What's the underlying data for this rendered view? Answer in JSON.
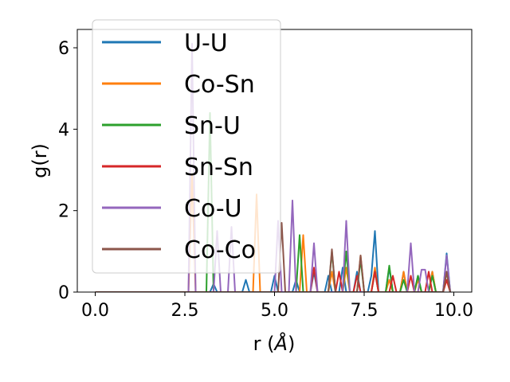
{
  "chart_data": {
    "type": "line",
    "xlabel": "r (",
    "xlabel_unit": "Å",
    "xlabel_close": ")",
    "ylabel": "g(r)",
    "xlim": [
      -0.5,
      10.5
    ],
    "ylim": [
      0,
      6.45
    ],
    "xticks": [
      0.0,
      2.5,
      5.0,
      7.5,
      10.0
    ],
    "xtick_labels": [
      "0.0",
      "2.5",
      "5.0",
      "7.5",
      "10.0"
    ],
    "yticks": [
      0,
      2,
      4,
      6
    ],
    "ytick_labels": [
      "0",
      "2",
      "4",
      "6"
    ],
    "grid": false,
    "legend_position": "upper-left",
    "series": [
      {
        "name": "U-U",
        "color": "#1f77b4",
        "x": [
          0,
          2.5,
          2.6,
          2.7,
          2.8,
          2.9,
          3.0,
          3.1,
          3.2,
          3.3,
          3.4,
          3.5,
          3.6,
          3.7,
          3.8,
          3.9,
          4.0,
          4.1,
          4.2,
          4.3,
          4.4,
          4.5,
          4.6,
          4.7,
          4.8,
          4.9,
          5.0,
          5.1,
          5.2,
          5.3,
          5.4,
          5.5,
          5.6,
          5.7,
          5.8,
          5.9,
          6.0,
          6.1,
          6.2,
          6.3,
          6.4,
          6.5,
          6.6,
          6.7,
          6.8,
          6.9,
          7.0,
          7.1,
          7.2,
          7.3,
          7.4,
          7.5,
          7.6,
          7.7,
          7.8,
          7.9,
          8.0,
          8.1,
          8.2,
          8.3,
          8.4,
          8.5,
          8.6,
          8.7,
          8.8,
          8.9,
          9.0,
          9.1,
          9.2,
          9.3,
          9.4,
          9.5,
          9.6,
          9.7,
          9.8,
          9.9
        ],
        "y": [
          0,
          0,
          0,
          0,
          0,
          0,
          0,
          0,
          0,
          0.2,
          0,
          0,
          0,
          0,
          0,
          0,
          0,
          0,
          0.3,
          0,
          0,
          0,
          0,
          0,
          0,
          0,
          0.4,
          0,
          0,
          0,
          0,
          0,
          0.3,
          0,
          0,
          0,
          0,
          0.5,
          0,
          0,
          0,
          0.4,
          0,
          0,
          0,
          0.6,
          0,
          0,
          0,
          0.5,
          0,
          0,
          0,
          0.4,
          1.5,
          0,
          0,
          0,
          0.6,
          0,
          0,
          0,
          0.5,
          0,
          0,
          0,
          0.4,
          0,
          0,
          0,
          0.5,
          0,
          0,
          0,
          0.95,
          0
        ]
      },
      {
        "name": "Co-Sn",
        "color": "#ff7f0e",
        "x": [
          0,
          2.5,
          2.6,
          2.7,
          2.8,
          2.9,
          3.0,
          3.1,
          3.2,
          3.3,
          3.4,
          3.5,
          3.6,
          3.7,
          3.8,
          3.9,
          4.0,
          4.1,
          4.2,
          4.3,
          4.4,
          4.5,
          4.6,
          4.7,
          4.8,
          4.9,
          5.0,
          5.1,
          5.2,
          5.3,
          5.4,
          5.5,
          5.6,
          5.7,
          5.8,
          5.9,
          6.0,
          6.1,
          6.2,
          6.3,
          6.4,
          6.5,
          6.6,
          6.7,
          6.8,
          6.9,
          7.0,
          7.1,
          7.2,
          7.3,
          7.4,
          7.5,
          7.6,
          7.7,
          7.8,
          7.9,
          8.0,
          8.1,
          8.2,
          8.3,
          8.4,
          8.5,
          8.6,
          8.7,
          8.8,
          8.9,
          9.0,
          9.1,
          9.2,
          9.3,
          9.4,
          9.5,
          9.6,
          9.7,
          9.8,
          9.9
        ],
        "y": [
          0,
          0,
          0,
          2.9,
          0,
          0,
          0,
          0,
          0,
          0,
          0,
          0,
          0,
          0,
          0,
          0,
          0,
          0,
          0,
          0,
          0,
          2.4,
          0,
          0,
          0,
          0,
          0,
          0,
          0,
          0,
          0,
          0,
          0,
          0,
          1.4,
          0,
          0,
          0,
          0,
          0,
          0,
          0,
          0.5,
          0,
          0,
          0,
          0.6,
          0,
          0,
          0,
          0.9,
          0,
          0,
          0,
          0.6,
          0,
          0,
          0,
          0.3,
          0,
          0,
          0,
          0.5,
          0,
          0,
          0,
          0.3,
          0,
          0,
          0,
          0.5,
          0,
          0,
          0,
          0.3,
          0
        ]
      },
      {
        "name": "Sn-U",
        "color": "#2ca02c",
        "x": [
          0,
          2.5,
          2.6,
          2.7,
          2.8,
          2.9,
          3.0,
          3.1,
          3.2,
          3.3,
          3.4,
          3.5,
          3.6,
          3.7,
          3.8,
          3.9,
          4.0,
          4.1,
          4.2,
          4.3,
          4.4,
          4.5,
          4.6,
          4.7,
          4.8,
          4.9,
          5.0,
          5.1,
          5.2,
          5.3,
          5.4,
          5.5,
          5.6,
          5.7,
          5.8,
          5.9,
          6.0,
          6.1,
          6.2,
          6.3,
          6.4,
          6.5,
          6.6,
          6.7,
          6.8,
          6.9,
          7.0,
          7.1,
          7.2,
          7.3,
          7.4,
          7.5,
          7.6,
          7.7,
          7.8,
          7.9,
          8.0,
          8.1,
          8.2,
          8.3,
          8.4,
          8.5,
          8.6,
          8.7,
          8.8,
          8.9,
          9.0,
          9.1,
          9.2,
          9.3,
          9.4,
          9.5,
          9.6,
          9.7,
          9.8,
          9.9
        ],
        "y": [
          0,
          0,
          0,
          0,
          0,
          0,
          0,
          0,
          4.4,
          0,
          0,
          0,
          0,
          0,
          0,
          0,
          0,
          0,
          0,
          0,
          0,
          0,
          0,
          0,
          0,
          0,
          0,
          0,
          0,
          0,
          0,
          0,
          0,
          1.4,
          0,
          0,
          0,
          0,
          0,
          0,
          0,
          0,
          1.0,
          0,
          0,
          0,
          1.0,
          0,
          0,
          0,
          0.8,
          0,
          0,
          0,
          0.5,
          0,
          0,
          0,
          0.65,
          0,
          0,
          0,
          0.3,
          0,
          0,
          0,
          0.4,
          0,
          0,
          0,
          0.4,
          0,
          0,
          0,
          0.5,
          0
        ]
      },
      {
        "name": "Sn-Sn",
        "color": "#d62728",
        "x": [
          0,
          2.5,
          2.6,
          2.7,
          2.8,
          2.9,
          3.0,
          3.1,
          3.2,
          3.3,
          3.4,
          3.5,
          3.6,
          3.7,
          3.8,
          3.9,
          4.0,
          4.1,
          4.2,
          4.3,
          4.4,
          4.5,
          4.6,
          4.7,
          4.8,
          4.9,
          5.0,
          5.1,
          5.2,
          5.3,
          5.4,
          5.5,
          5.6,
          5.7,
          5.8,
          5.9,
          6.0,
          6.1,
          6.2,
          6.3,
          6.4,
          6.5,
          6.6,
          6.7,
          6.8,
          6.9,
          7.0,
          7.1,
          7.2,
          7.3,
          7.4,
          7.5,
          7.6,
          7.7,
          7.8,
          7.9,
          8.0,
          8.1,
          8.2,
          8.3,
          8.4,
          8.5,
          8.6,
          8.7,
          8.8,
          8.9,
          9.0,
          9.1,
          9.2,
          9.3,
          9.4,
          9.5,
          9.6,
          9.7,
          9.8,
          9.9
        ],
        "y": [
          0,
          0,
          0,
          0,
          0,
          0,
          0,
          0,
          0,
          0,
          0,
          0,
          0,
          0,
          0,
          0,
          0,
          0,
          0,
          0,
          0,
          0,
          0,
          0,
          0,
          0,
          0,
          0,
          0,
          0,
          0,
          0,
          0,
          0,
          0,
          0,
          0,
          0.6,
          0,
          0,
          0,
          0,
          0,
          0,
          0.5,
          0,
          0,
          0,
          0,
          0.4,
          0,
          0,
          0,
          0,
          0.5,
          0,
          0,
          0,
          0,
          0.4,
          0,
          0,
          0,
          0,
          0.4,
          0,
          0,
          0,
          0,
          0.5,
          0,
          0,
          0,
          0,
          0.3,
          0
        ]
      },
      {
        "name": "Co-U",
        "color": "#9467bd",
        "x": [
          0,
          2.5,
          2.6,
          2.7,
          2.8,
          2.9,
          3.0,
          3.1,
          3.2,
          3.3,
          3.4,
          3.5,
          3.6,
          3.7,
          3.8,
          3.9,
          4.0,
          4.1,
          4.2,
          4.3,
          4.4,
          4.5,
          4.6,
          4.7,
          4.8,
          4.9,
          5.0,
          5.1,
          5.2,
          5.3,
          5.4,
          5.5,
          5.6,
          5.7,
          5.8,
          5.9,
          6.0,
          6.1,
          6.2,
          6.3,
          6.4,
          6.5,
          6.6,
          6.7,
          6.8,
          6.9,
          7.0,
          7.1,
          7.2,
          7.3,
          7.4,
          7.5,
          7.6,
          7.7,
          7.8,
          7.9,
          8.0,
          8.1,
          8.2,
          8.3,
          8.4,
          8.5,
          8.6,
          8.7,
          8.8,
          8.9,
          9.0,
          9.1,
          9.2,
          9.3,
          9.4,
          9.5,
          9.6,
          9.7,
          9.8,
          9.9
        ],
        "y": [
          0,
          0,
          0,
          6.1,
          0,
          0,
          0,
          0,
          0,
          0,
          1.5,
          0,
          0,
          0,
          1.6,
          0,
          0,
          0,
          0,
          0,
          0,
          0,
          0,
          0,
          0,
          0,
          0,
          1.75,
          0,
          0,
          0,
          2.25,
          0,
          0,
          0,
          0,
          0,
          1.2,
          0,
          0,
          0,
          0,
          0,
          0,
          0,
          0,
          1.75,
          0,
          0,
          0,
          0,
          0,
          0,
          0,
          0,
          0,
          0,
          0,
          0,
          0,
          0,
          0,
          0,
          0,
          1.2,
          0,
          0,
          0.55,
          0.55,
          0,
          0,
          0,
          0,
          0,
          0.9,
          0
        ]
      },
      {
        "name": "Co-Co",
        "color": "#8c564b",
        "x": [
          0,
          2.5,
          2.6,
          2.7,
          2.8,
          2.9,
          3.0,
          3.1,
          3.2,
          3.3,
          3.4,
          3.5,
          3.6,
          3.7,
          3.8,
          3.9,
          4.0,
          4.1,
          4.2,
          4.3,
          4.4,
          4.5,
          4.6,
          4.7,
          4.8,
          4.9,
          5.0,
          5.1,
          5.2,
          5.3,
          5.4,
          5.5,
          5.6,
          5.7,
          5.8,
          5.9,
          6.0,
          6.1,
          6.2,
          6.3,
          6.4,
          6.5,
          6.6,
          6.7,
          6.8,
          6.9,
          7.0,
          7.1,
          7.2,
          7.3,
          7.4,
          7.5,
          7.6,
          7.7,
          7.8,
          7.9,
          8.0,
          8.1,
          8.2,
          8.3,
          8.4,
          8.5,
          8.6,
          8.7,
          8.8,
          8.9,
          9.0,
          9.1,
          9.2,
          9.3,
          9.4,
          9.5,
          9.6,
          9.7,
          9.8,
          9.9
        ],
        "y": [
          0,
          0,
          0,
          0,
          0,
          0,
          0,
          0,
          0,
          0,
          0,
          0,
          0,
          0,
          0,
          0,
          0,
          0,
          0,
          0,
          0,
          0,
          0,
          0,
          0,
          0,
          0,
          0,
          1.7,
          0,
          0,
          0,
          0,
          0,
          0,
          0,
          0,
          0,
          0,
          0,
          0,
          0,
          1.05,
          0,
          0,
          0,
          0,
          0,
          0,
          0,
          0.9,
          0,
          0,
          0,
          0,
          0,
          0,
          0,
          0,
          0,
          0,
          0,
          0,
          0,
          0,
          0,
          0,
          0,
          0,
          0,
          0,
          0,
          0,
          0,
          0.5,
          0
        ]
      }
    ]
  }
}
